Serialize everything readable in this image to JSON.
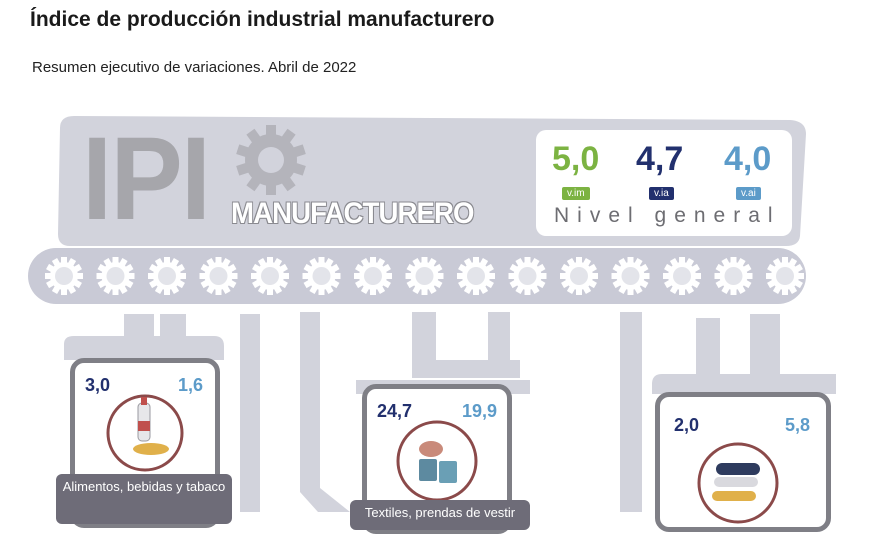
{
  "header": {
    "title": "Índice de producción industrial manufacturero",
    "subtitle": "Resumen ejecutivo de variaciones. Abril de 2022"
  },
  "machine": {
    "logo_text": "IPI",
    "logo_subtext": "MANUFACTURERO",
    "gear_icon": "gear-icon"
  },
  "summary": {
    "vim": {
      "value": "5,0",
      "tag": "v.im",
      "color": "#7cb342"
    },
    "via": {
      "value": "4,7",
      "tag": "v.ia",
      "color": "#22306e"
    },
    "vai": {
      "value": "4,0",
      "tag": "v.ai",
      "color": "#5c9bc9"
    },
    "label": "Nivel general"
  },
  "sectors": [
    {
      "left_value": "3,0",
      "right_value": "1,6",
      "caption": "Alimentos, bebidas y tabaco",
      "icon": "food-bottle-icon"
    },
    {
      "left_value": "24,7",
      "right_value": "19,9",
      "caption": "Textiles, prendas de vestir",
      "icon": "textile-icon"
    },
    {
      "left_value": "2,0",
      "right_value": "5,8",
      "caption": "",
      "icon": "paper-rolls-icon"
    }
  ],
  "colors": {
    "machine": "#d2d3dc",
    "frame": "#7f7f86",
    "accent_green": "#7cb342",
    "accent_navy": "#22306e",
    "accent_blue": "#5c9bc9"
  }
}
